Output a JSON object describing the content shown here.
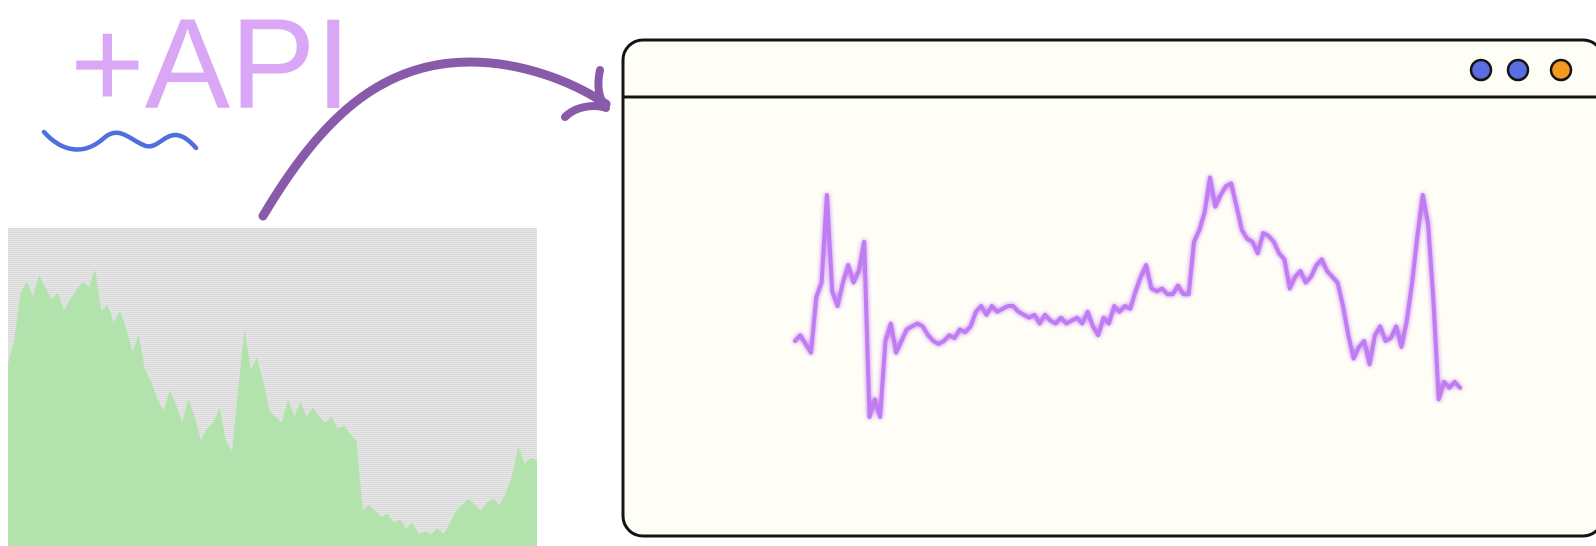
{
  "headline": {
    "text": "+API",
    "color": "#d9a7f5"
  },
  "colors": {
    "squiggle": "#4f6fdc",
    "arrow": "#8a5aaa",
    "source_chart_bg": "#e6e6e6",
    "source_chart_fill": "#b2e3ad",
    "window_bg": "#fffef6",
    "window_border": "#141414",
    "window_line": "#c07cf2",
    "button_blue": "#5b6ee1",
    "button_orange": "#f59a20"
  },
  "source_chart": {
    "type": "area",
    "values": [
      0.62,
      0.7,
      0.86,
      0.9,
      0.85,
      0.92,
      0.88,
      0.84,
      0.86,
      0.8,
      0.84,
      0.87,
      0.9,
      0.88,
      0.94,
      0.8,
      0.82,
      0.76,
      0.8,
      0.74,
      0.66,
      0.72,
      0.6,
      0.56,
      0.5,
      0.46,
      0.53,
      0.48,
      0.42,
      0.5,
      0.44,
      0.36,
      0.4,
      0.42,
      0.47,
      0.36,
      0.32,
      0.54,
      0.74,
      0.6,
      0.64,
      0.56,
      0.46,
      0.44,
      0.42,
      0.5,
      0.44,
      0.49,
      0.44,
      0.47,
      0.44,
      0.42,
      0.44,
      0.4,
      0.41,
      0.38,
      0.36,
      0.12,
      0.14,
      0.12,
      0.1,
      0.11,
      0.08,
      0.09,
      0.06,
      0.08,
      0.04,
      0.05,
      0.04,
      0.06,
      0.04,
      0.08,
      0.12,
      0.14,
      0.16,
      0.14,
      0.12,
      0.15,
      0.16,
      0.14,
      0.18,
      0.24,
      0.34,
      0.28,
      0.3,
      0.29
    ]
  },
  "window": {
    "buttons": [
      {
        "name": "window-button-1",
        "color": "#5b6ee1"
      },
      {
        "name": "window-button-2",
        "color": "#5b6ee1"
      },
      {
        "name": "window-button-3",
        "color": "#f59a20"
      }
    ]
  },
  "output_chart": {
    "type": "line",
    "values": [
      0.38,
      0.4,
      0.37,
      0.34,
      0.53,
      0.58,
      0.88,
      0.55,
      0.5,
      0.58,
      0.64,
      0.58,
      0.62,
      0.72,
      0.12,
      0.18,
      0.12,
      0.38,
      0.44,
      0.34,
      0.38,
      0.42,
      0.43,
      0.44,
      0.43,
      0.4,
      0.38,
      0.37,
      0.38,
      0.4,
      0.39,
      0.42,
      0.41,
      0.43,
      0.48,
      0.5,
      0.47,
      0.5,
      0.48,
      0.49,
      0.5,
      0.5,
      0.48,
      0.47,
      0.46,
      0.47,
      0.44,
      0.47,
      0.45,
      0.44,
      0.46,
      0.44,
      0.45,
      0.46,
      0.44,
      0.48,
      0.43,
      0.4,
      0.46,
      0.44,
      0.5,
      0.48,
      0.5,
      0.49,
      0.55,
      0.6,
      0.64,
      0.56,
      0.55,
      0.56,
      0.54,
      0.54,
      0.57,
      0.54,
      0.54,
      0.72,
      0.76,
      0.82,
      0.94,
      0.84,
      0.88,
      0.91,
      0.92,
      0.84,
      0.76,
      0.73,
      0.72,
      0.68,
      0.75,
      0.74,
      0.72,
      0.68,
      0.66,
      0.56,
      0.6,
      0.62,
      0.58,
      0.6,
      0.64,
      0.66,
      0.62,
      0.6,
      0.58,
      0.5,
      0.4,
      0.32,
      0.36,
      0.38,
      0.3,
      0.4,
      0.43,
      0.38,
      0.39,
      0.43,
      0.36,
      0.45,
      0.58,
      0.74,
      0.88,
      0.78,
      0.52,
      0.18,
      0.24,
      0.22,
      0.24,
      0.22
    ]
  }
}
